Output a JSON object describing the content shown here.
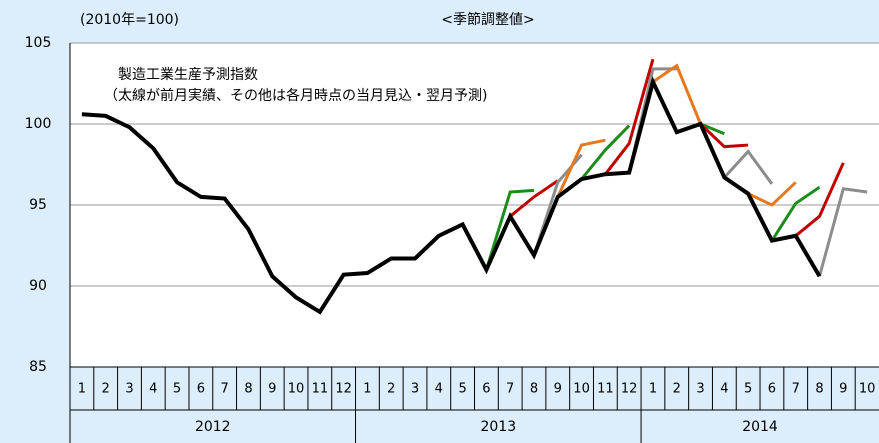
{
  "chart_data": {
    "type": "line",
    "title": "<季節調整値>",
    "y_label": "(2010年=100)",
    "annotations": [
      "製造工業生産予測指数",
      "（太線が前月実績、その他は各月時点の当月見込・翌月予測)"
    ],
    "categories": [
      "1",
      "2",
      "3",
      "4",
      "5",
      "6",
      "7",
      "8",
      "9",
      "10",
      "11",
      "12",
      "1",
      "2",
      "3",
      "4",
      "5",
      "6",
      "7",
      "8",
      "9",
      "10",
      "11",
      "12",
      "1",
      "2",
      "3",
      "4",
      "5",
      "6",
      "7",
      "8",
      "9",
      "10"
    ],
    "years": [
      "2012",
      "2013",
      "2014"
    ],
    "ylim": [
      85,
      105
    ],
    "yticks": [
      85,
      90,
      95,
      100,
      105
    ],
    "grid": true,
    "series": [
      {
        "color": "#1a8c1a",
        "values": [
          null,
          null,
          null,
          null,
          null,
          null,
          null,
          null,
          null,
          null,
          null,
          null,
          null,
          null,
          null,
          null,
          null,
          91.0,
          95.8,
          95.9,
          null,
          null,
          null,
          null,
          null,
          null,
          null,
          null,
          null,
          null,
          null,
          null,
          null,
          null
        ]
      },
      {
        "color": "#c00000",
        "values": [
          null,
          null,
          null,
          null,
          null,
          null,
          null,
          null,
          null,
          null,
          null,
          null,
          null,
          null,
          null,
          null,
          null,
          null,
          94.3,
          95.5,
          96.5,
          null,
          null,
          null,
          null,
          null,
          null,
          null,
          null,
          null,
          null,
          null,
          null,
          null
        ]
      },
      {
        "color": "#8c8c8c",
        "values": [
          null,
          null,
          null,
          null,
          null,
          null,
          null,
          null,
          null,
          null,
          null,
          null,
          null,
          null,
          null,
          null,
          null,
          null,
          null,
          91.9,
          96.4,
          98.1,
          null,
          null,
          null,
          null,
          null,
          null,
          null,
          null,
          null,
          null,
          null,
          null
        ]
      },
      {
        "color": "#e8781e",
        "values": [
          null,
          null,
          null,
          null,
          null,
          null,
          null,
          null,
          null,
          null,
          null,
          null,
          null,
          null,
          null,
          null,
          null,
          null,
          null,
          null,
          95.5,
          98.7,
          99.0,
          null,
          null,
          null,
          null,
          null,
          null,
          null,
          null,
          null,
          null,
          null
        ]
      },
      {
        "color": "#1a8c1a",
        "values": [
          null,
          null,
          null,
          null,
          null,
          null,
          null,
          null,
          null,
          null,
          null,
          null,
          null,
          null,
          null,
          null,
          null,
          null,
          null,
          null,
          null,
          96.6,
          98.4,
          99.9,
          null,
          null,
          null,
          null,
          null,
          null,
          null,
          null,
          null,
          null
        ]
      },
      {
        "color": "#c00000",
        "values": [
          null,
          null,
          null,
          null,
          null,
          null,
          null,
          null,
          null,
          null,
          null,
          null,
          null,
          null,
          null,
          null,
          null,
          null,
          null,
          null,
          null,
          null,
          96.9,
          98.8,
          104.0,
          null,
          null,
          null,
          null,
          null,
          null,
          null,
          null,
          null
        ]
      },
      {
        "color": "#8c8c8c",
        "values": [
          null,
          null,
          null,
          null,
          null,
          null,
          null,
          null,
          null,
          null,
          null,
          null,
          null,
          null,
          null,
          null,
          null,
          null,
          null,
          null,
          null,
          null,
          null,
          97.0,
          103.4,
          103.4,
          null,
          null,
          null,
          null,
          null,
          null,
          null,
          null
        ]
      },
      {
        "color": "#e8781e",
        "values": [
          null,
          null,
          null,
          null,
          null,
          null,
          null,
          null,
          null,
          null,
          null,
          null,
          null,
          null,
          null,
          null,
          null,
          null,
          null,
          null,
          null,
          null,
          null,
          null,
          102.6,
          103.6,
          100.0,
          null,
          null,
          null,
          null,
          null,
          null,
          null
        ]
      },
      {
        "color": "#1a8c1a",
        "values": [
          null,
          null,
          null,
          null,
          null,
          null,
          null,
          null,
          null,
          null,
          null,
          null,
          null,
          null,
          null,
          null,
          null,
          null,
          null,
          null,
          null,
          null,
          null,
          null,
          null,
          99.5,
          100.0,
          99.4,
          null,
          null,
          null,
          null,
          null,
          null
        ]
      },
      {
        "color": "#c00000",
        "values": [
          null,
          null,
          null,
          null,
          null,
          null,
          null,
          null,
          null,
          null,
          null,
          null,
          null,
          null,
          null,
          null,
          null,
          null,
          null,
          null,
          null,
          null,
          null,
          null,
          null,
          null,
          100.0,
          98.6,
          98.7,
          null,
          null,
          null,
          null,
          null
        ]
      },
      {
        "color": "#8c8c8c",
        "values": [
          null,
          null,
          null,
          null,
          null,
          null,
          null,
          null,
          null,
          null,
          null,
          null,
          null,
          null,
          null,
          null,
          null,
          null,
          null,
          null,
          null,
          null,
          null,
          null,
          null,
          null,
          null,
          96.7,
          98.3,
          96.3,
          null,
          null,
          null,
          null
        ]
      },
      {
        "color": "#e8781e",
        "values": [
          null,
          null,
          null,
          null,
          null,
          null,
          null,
          null,
          null,
          null,
          null,
          null,
          null,
          null,
          null,
          null,
          null,
          null,
          null,
          null,
          null,
          null,
          null,
          null,
          null,
          null,
          null,
          null,
          95.7,
          95.0,
          96.4,
          null,
          null,
          null
        ]
      },
      {
        "color": "#1a8c1a",
        "values": [
          null,
          null,
          null,
          null,
          null,
          null,
          null,
          null,
          null,
          null,
          null,
          null,
          null,
          null,
          null,
          null,
          null,
          null,
          null,
          null,
          null,
          null,
          null,
          null,
          null,
          null,
          null,
          null,
          null,
          92.8,
          95.1,
          96.1,
          null,
          null
        ]
      },
      {
        "color": "#c00000",
        "values": [
          null,
          null,
          null,
          null,
          null,
          null,
          null,
          null,
          null,
          null,
          null,
          null,
          null,
          null,
          null,
          null,
          null,
          null,
          null,
          null,
          null,
          null,
          null,
          null,
          null,
          null,
          null,
          null,
          null,
          null,
          93.1,
          94.3,
          97.6,
          null
        ]
      },
      {
        "color": "#8c8c8c",
        "values": [
          null,
          null,
          null,
          null,
          null,
          null,
          null,
          null,
          null,
          null,
          null,
          null,
          null,
          null,
          null,
          null,
          null,
          null,
          null,
          null,
          null,
          null,
          null,
          null,
          null,
          null,
          null,
          null,
          null,
          null,
          null,
          90.6,
          96.0,
          95.8
        ]
      },
      {
        "color": "#000000",
        "bold": true,
        "values": [
          100.6,
          100.5,
          99.8,
          98.5,
          96.4,
          95.5,
          95.4,
          93.5,
          90.6,
          89.3,
          88.4,
          90.7,
          90.8,
          91.7,
          91.7,
          93.1,
          93.8,
          91.0,
          94.3,
          91.9,
          95.5,
          96.6,
          96.9,
          97.0,
          102.6,
          99.5,
          100.0,
          96.7,
          95.7,
          92.8,
          93.1,
          90.6,
          null,
          null
        ]
      }
    ]
  }
}
